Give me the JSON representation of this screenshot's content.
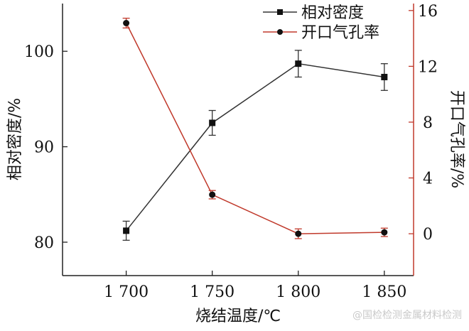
{
  "chart_data": {
    "type": "line",
    "xlabel": "烧结温度/℃",
    "ylabel_left": "相对密度/%",
    "ylabel_right": "开口气孔率/%",
    "x": [
      1700,
      1750,
      1800,
      1850
    ],
    "x_tick_labels": [
      "1 700",
      "1 750",
      "1 800",
      "1 850"
    ],
    "xlim": [
      1663,
      1867
    ],
    "ylim_left": [
      76.5,
      105
    ],
    "yticks_left": [
      80,
      90,
      100
    ],
    "ylim_right": [
      -3,
      16.5
    ],
    "yticks_right": [
      0,
      4,
      8,
      12,
      16
    ],
    "series": [
      {
        "name": "相对密度",
        "axis": "left",
        "color": "#333333",
        "marker": "square",
        "values": [
          81.2,
          92.5,
          98.7,
          97.3
        ],
        "errors": [
          1.0,
          1.3,
          1.4,
          1.4
        ]
      },
      {
        "name": "开口气孔率",
        "axis": "right",
        "color": "#c0392b",
        "marker": "circle",
        "values": [
          15.1,
          2.8,
          0.0,
          0.1
        ],
        "errors": [
          0.35,
          0.3,
          0.35,
          0.3
        ]
      }
    ],
    "legend_position": "top-right"
  },
  "watermark": "@国检检测金属材料检测"
}
